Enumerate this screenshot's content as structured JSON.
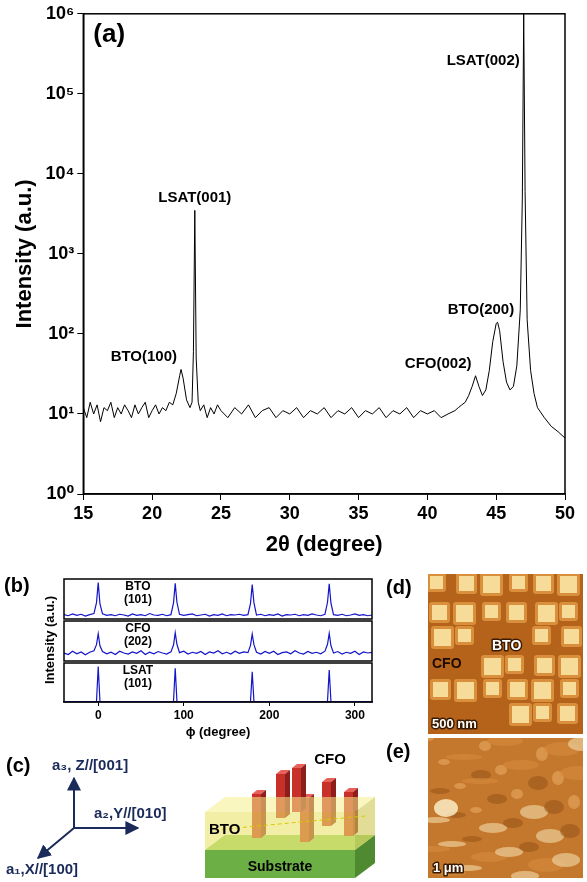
{
  "chart_data": [
    {
      "type": "line",
      "panel_label": "(a)",
      "x_label": "2θ (degree)",
      "y_label": "Intensity (a.u.)",
      "x": [
        15,
        15.25,
        15.5,
        15.75,
        16,
        16.25,
        16.5,
        16.75,
        17,
        17.25,
        17.5,
        17.75,
        18,
        18.25,
        18.5,
        18.75,
        19,
        19.25,
        19.5,
        19.75,
        20,
        20.25,
        20.5,
        20.75,
        21,
        21.25,
        21.5,
        21.75,
        22,
        22.1,
        22.25,
        22.5,
        22.75,
        22.9,
        23,
        23.1,
        23.2,
        23.35,
        23.5,
        23.75,
        24,
        24.25,
        24.5,
        24.75,
        25,
        25.5,
        26,
        26.5,
        27,
        27.5,
        28,
        28.5,
        29,
        29.5,
        30,
        30.5,
        31,
        31.5,
        32,
        32.5,
        33,
        33.5,
        34,
        34.5,
        35,
        35.5,
        36,
        36.5,
        37,
        37.5,
        38,
        38.5,
        39,
        39.5,
        40,
        40.5,
        41,
        41.5,
        42,
        42.25,
        42.5,
        42.75,
        43,
        43.25,
        43.5,
        43.75,
        44,
        44.25,
        44.5,
        44.75,
        45,
        45.1,
        45.25,
        45.5,
        45.75,
        46,
        46.25,
        46.5,
        46.75,
        46.9,
        47,
        47.1,
        47.25,
        47.5,
        47.75,
        48,
        48.5,
        49,
        49.5,
        50
      ],
      "values": [
        12,
        9,
        14,
        10,
        13,
        8,
        12,
        11,
        14,
        9,
        12,
        10,
        13,
        11,
        9,
        13,
        10,
        12,
        14,
        9,
        11,
        13,
        10,
        12,
        11,
        14,
        13,
        18,
        30,
        36,
        28,
        15,
        12,
        14,
        60,
        3500,
        50,
        14,
        11,
        13,
        9,
        12,
        10,
        13,
        11,
        9,
        12,
        10,
        13,
        9,
        11,
        12,
        9,
        11,
        10,
        12,
        9,
        11,
        10,
        12,
        9,
        11,
        10,
        12,
        9,
        11,
        10,
        12,
        9,
        11,
        10,
        12,
        9,
        11,
        10,
        11,
        9,
        10,
        11,
        12,
        13,
        14,
        17,
        22,
        30,
        22,
        17,
        20,
        35,
        80,
        135,
        140,
        110,
        45,
        25,
        20,
        22,
        40,
        200,
        5000,
        1000000,
        6000,
        150,
        35,
        18,
        12,
        9,
        7,
        6,
        5
      ],
      "color": "#000000",
      "log": "y",
      "grid": false,
      "xlim": [
        15,
        50
      ],
      "xticks": [
        15,
        20,
        25,
        30,
        35,
        40,
        45,
        50
      ],
      "ylim": [
        1,
        1000000
      ],
      "yticks": [
        {
          "value": 1,
          "label": "10⁰"
        },
        {
          "value": 10,
          "label": "10¹"
        },
        {
          "value": 100,
          "label": "10²"
        },
        {
          "value": 1000,
          "label": "10³"
        },
        {
          "value": 10000,
          "label": "10⁴"
        },
        {
          "value": 100000,
          "label": "10⁵"
        },
        {
          "value": 1000000,
          "label": "10⁶"
        }
      ],
      "annotations": [
        {
          "text": "BTO(100)",
          "x": 22.1
        },
        {
          "text": "LSAT(001)",
          "x": 23.1
        },
        {
          "text": "CFO(002)",
          "x": 43.5
        },
        {
          "text": "BTO(200)",
          "x": 45.1
        },
        {
          "text": "LSAT(002)",
          "x": 47
        }
      ]
    },
    {
      "type": "line",
      "panel_label": "(b)",
      "x_label": "ϕ (degree)",
      "y_label": "Intensity (a.u.)",
      "x": [
        -40,
        -35,
        -30,
        -25,
        -20,
        -15,
        -10,
        -5,
        -2,
        0,
        2,
        5,
        10,
        15,
        20,
        25,
        30,
        35,
        40,
        45,
        50,
        55,
        60,
        65,
        70,
        75,
        80,
        85,
        88,
        90,
        92,
        95,
        100,
        105,
        110,
        115,
        120,
        125,
        130,
        135,
        140,
        145,
        150,
        155,
        160,
        165,
        170,
        175,
        178,
        180,
        182,
        185,
        190,
        195,
        200,
        205,
        210,
        215,
        220,
        225,
        230,
        235,
        240,
        245,
        250,
        255,
        260,
        265,
        268,
        270,
        272,
        275,
        280,
        285,
        290,
        295,
        300,
        305,
        310,
        315,
        320
      ],
      "series": [
        {
          "name": "BTO (101)",
          "color": "#1414c8",
          "values": [
            12,
            9,
            14,
            10,
            13,
            8,
            12,
            15,
            45,
            100,
            42,
            14,
            10,
            12,
            9,
            13,
            11,
            8,
            14,
            10,
            12,
            9,
            15,
            11,
            10,
            13,
            9,
            12,
            44,
            98,
            46,
            13,
            10,
            12,
            14,
            9,
            11,
            13,
            8,
            12,
            10,
            14,
            9,
            12,
            11,
            13,
            10,
            12,
            43,
            95,
            45,
            11,
            13,
            9,
            12,
            10,
            14,
            8,
            12,
            11,
            13,
            9,
            12,
            10,
            14,
            11,
            9,
            13,
            46,
            97,
            44,
            12,
            10,
            13,
            9,
            11,
            14,
            10,
            12,
            9,
            11
          ]
        },
        {
          "name": "CFO (202)",
          "color": "#1414c8",
          "values": [
            22,
            18,
            27,
            20,
            25,
            17,
            24,
            28,
            45,
            75,
            42,
            26,
            20,
            24,
            18,
            27,
            22,
            19,
            25,
            21,
            28,
            18,
            24,
            20,
            26,
            22,
            19,
            25,
            44,
            78,
            46,
            23,
            27,
            19,
            24,
            21,
            26,
            18,
            25,
            22,
            28,
            20,
            24,
            19,
            27,
            21,
            25,
            23,
            43,
            74,
            45,
            24,
            19,
            26,
            21,
            27,
            18,
            23,
            25,
            20,
            28,
            22,
            19,
            26,
            21,
            24,
            20,
            27,
            46,
            76,
            42,
            22,
            26,
            19,
            24,
            21,
            27,
            18,
            25,
            22,
            24
          ]
        },
        {
          "name": "LSAT (101)",
          "color": "#1414c8",
          "values": [
            1,
            1,
            1,
            1,
            1,
            1,
            1,
            1,
            2,
            100,
            2,
            1,
            1,
            1,
            1,
            1,
            1,
            1,
            1,
            1,
            1,
            1,
            1,
            1,
            1,
            1,
            1,
            1,
            2,
            95,
            2,
            1,
            1,
            1,
            1,
            1,
            1,
            1,
            1,
            1,
            1,
            1,
            1,
            1,
            1,
            1,
            1,
            1,
            2,
            85,
            2,
            1,
            1,
            1,
            1,
            1,
            1,
            1,
            1,
            1,
            1,
            1,
            1,
            1,
            1,
            1,
            1,
            1,
            2,
            90,
            2,
            1,
            1,
            1,
            1,
            1,
            1,
            1,
            1,
            1,
            1
          ]
        }
      ],
      "xlim": [
        -40,
        320
      ],
      "xticks": [
        0,
        100,
        200,
        300
      ],
      "ylim": [
        0,
        110
      ],
      "tick_labels": "x",
      "grid": false
    }
  ],
  "diagram": {
    "panel_label": "(c)",
    "axes": [
      "a₁,X//[100]",
      "a₂,Y//[010]",
      "a₃, Z//[001]"
    ],
    "layers": {
      "pillars": "CFO",
      "matrix": "BTO",
      "base": "Substrate"
    }
  },
  "images": [
    {
      "panel_label": "(d)",
      "labels": [
        "CFO",
        "BTO"
      ],
      "scale_bar": "500 nm"
    },
    {
      "panel_label": "(e)",
      "scale_bar": "1 μm"
    }
  ]
}
